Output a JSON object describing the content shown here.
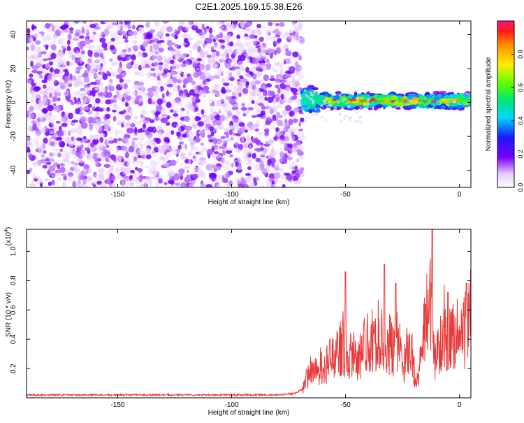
{
  "page_title": "C2E1.2025.169.15.38.E26",
  "chart_data": [
    {
      "type": "heatmap",
      "xlabel": "Height of straight line (km)",
      "ylabel": "Frequency (Hz)",
      "xlim": [
        -190,
        5
      ],
      "ylim": [
        -50,
        48
      ],
      "x_ticks": [
        -150,
        -100,
        -50,
        0
      ],
      "y_ticks": [
        -40,
        -20,
        0,
        20,
        40
      ],
      "x_tick_labels": [
        "-150",
        "-100",
        "-50",
        "0"
      ],
      "y_tick_labels": [
        "-40",
        "-20",
        "0",
        "20",
        "40"
      ],
      "colorbar": {
        "label": "Normalized spectral amplitude",
        "range": [
          0,
          1
        ],
        "ticks": [
          0.0,
          0.2,
          0.4,
          0.6,
          0.8
        ],
        "tick_labels": [
          "0.0",
          "0.2",
          "0.4",
          "0.6",
          "0.8"
        ],
        "colormap": "rainbow (purple to red)"
      },
      "regions": [
        {
          "x_range": [
            -190,
            -69
          ],
          "y_range": [
            -50,
            48
          ],
          "amplitude_range": [
            0.0,
            0.15
          ],
          "pattern": "scattered noise"
        },
        {
          "x_range": [
            -69,
            5
          ],
          "y_center": 1,
          "y_halfwidth": 5,
          "amplitude_range": [
            0.1,
            1.0
          ],
          "pattern": "narrow band near 0 Hz"
        }
      ]
    },
    {
      "type": "line",
      "xlabel": "Height of straight line (km)",
      "ylabel": "SNR (10 * v/v)",
      "multiplier_label": "(x10",
      "multiplier_exp": "4",
      "multiplier_close": ")",
      "xlim": [
        -190,
        5
      ],
      "ylim": [
        0,
        1.15
      ],
      "x_ticks": [
        -150,
        -100,
        -50,
        0
      ],
      "y_ticks": [
        0.2,
        0.4,
        0.6,
        0.8,
        1.0
      ],
      "x_tick_labels": [
        "-150",
        "-100",
        "-50",
        "0"
      ],
      "y_tick_labels": [
        "0.2",
        "0.4",
        "0.6",
        "0.8",
        "1.0"
      ],
      "color": "#e83a3a",
      "series": [
        {
          "x": [
            -190,
            -180,
            -170,
            -160,
            -150,
            -140,
            -130,
            -120,
            -110,
            -100,
            -90,
            -80,
            -72,
            -69,
            -67,
            -65,
            -63,
            -61,
            -59,
            -57,
            -55,
            -53,
            -51,
            -49,
            -47,
            -45,
            -43,
            -41,
            -39,
            -37,
            -35,
            -33,
            -31,
            -29,
            -27,
            -25,
            -23,
            -21,
            -19,
            -17,
            -15,
            -13,
            -12,
            -11,
            -9,
            -7,
            -5,
            -3,
            -1,
            1,
            3,
            5
          ],
          "y": [
            0.02,
            0.02,
            0.02,
            0.02,
            0.02,
            0.02,
            0.02,
            0.02,
            0.02,
            0.02,
            0.02,
            0.02,
            0.03,
            0.06,
            0.16,
            0.22,
            0.2,
            0.26,
            0.24,
            0.3,
            0.34,
            0.38,
            0.45,
            0.28,
            0.4,
            0.26,
            0.38,
            0.42,
            0.5,
            0.4,
            0.55,
            0.34,
            0.45,
            0.36,
            0.5,
            0.2,
            0.4,
            0.35,
            0.12,
            0.28,
            0.6,
            0.75,
            0.5,
            0.3,
            0.4,
            0.62,
            0.45,
            0.5,
            0.55,
            0.5,
            0.58,
            0.7
          ],
          "peaks": [
            {
              "x": -50,
              "y": 0.86
            },
            {
              "x": -33,
              "y": 0.91
            },
            {
              "x": -28,
              "y": 0.78
            },
            {
              "x": -15,
              "y": 0.64
            },
            {
              "x": -12,
              "y": 1.15
            },
            {
              "x": -5,
              "y": 0.72
            },
            {
              "x": 3,
              "y": 0.78
            }
          ]
        }
      ]
    }
  ]
}
